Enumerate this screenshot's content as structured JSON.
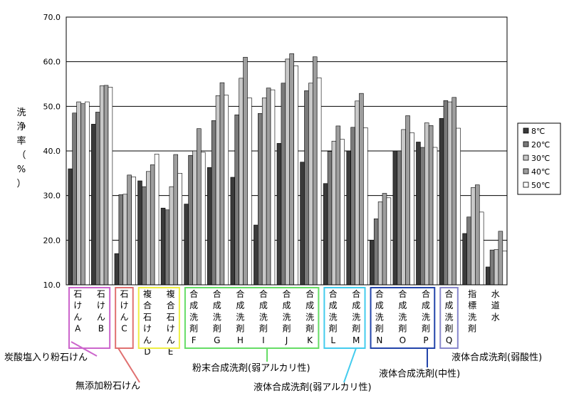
{
  "chart_data": {
    "type": "bar",
    "ylabel": "洗浄率（%）",
    "ylim": [
      10,
      70
    ],
    "yticks": [
      "10.0",
      "20.0",
      "30.0",
      "40.0",
      "50.0",
      "60.0",
      "70.0"
    ],
    "grid": true,
    "legend_position": "right",
    "categories": [
      "石けんA",
      "石けんB",
      "石けんC",
      "複合石けんD",
      "複合石けんE",
      "合成洗剤F",
      "合成洗剤G",
      "合成洗剤H",
      "合成洗剤I",
      "合成洗剤J",
      "合成洗剤K",
      "合成洗剤L",
      "合成洗剤M",
      "合成洗剤N",
      "合成洗剤O",
      "合成洗剤P",
      "合成洗剤Q",
      "指標洗剤",
      "水道水"
    ],
    "series": [
      {
        "name": "8℃",
        "color": "#3a3a3a",
        "values": [
          36.0,
          46.0,
          17.0,
          33.3,
          27.2,
          28.1,
          36.3,
          34.1,
          23.4,
          41.7,
          37.5,
          32.7,
          40.0,
          20.0,
          40.0,
          42.0,
          47.3,
          21.5,
          14.0
        ]
      },
      {
        "name": "20℃",
        "color": "#7a7a7a",
        "values": [
          48.5,
          48.7,
          30.2,
          32.0,
          26.8,
          39.0,
          46.8,
          48.1,
          48.4,
          55.2,
          53.5,
          39.9,
          45.3,
          24.8,
          40.0,
          40.8,
          51.3,
          25.2,
          17.8
        ]
      },
      {
        "name": "30℃",
        "color": "#c8c8c8",
        "values": [
          51.0,
          54.6,
          30.3,
          35.4,
          32.0,
          40.0,
          52.4,
          56.3,
          51.9,
          60.6,
          55.2,
          42.2,
          51.2,
          28.6,
          44.8,
          46.3,
          51.0,
          31.8,
          17.9
        ]
      },
      {
        "name": "40℃",
        "color": "#9e9e9e",
        "values": [
          50.6,
          54.7,
          34.6,
          36.9,
          39.2,
          45.0,
          55.3,
          61.0,
          54.1,
          61.8,
          61.1,
          45.6,
          52.9,
          30.5,
          47.9,
          45.7,
          52.0,
          32.4,
          22.0
        ]
      },
      {
        "name": "50℃",
        "color": "#ffffff",
        "values": [
          51.0,
          54.3,
          34.2,
          39.3,
          35.0,
          39.7,
          52.5,
          51.9,
          53.7,
          59.1,
          56.4,
          42.6,
          45.2,
          29.5,
          44.1,
          40.8,
          45.1,
          26.3,
          17.6
        ]
      }
    ]
  },
  "annotations": [
    {
      "text": "炭酸塩入り粉石けん",
      "color": "#cc66cc"
    },
    {
      "text": "無添加粉石けん",
      "color": "#e07070"
    },
    {
      "text": "粉末合成洗剤(弱アルカリ性)",
      "color": "#66dd66"
    },
    {
      "text": "液体合成洗剤(弱アルカリ性)",
      "color": "#44ccee"
    },
    {
      "text": "液体合成洗剤(中性)",
      "color": "#2244aa"
    },
    {
      "text": "液体合成洗剤(弱酸性)",
      "color": "#8888cc"
    }
  ]
}
